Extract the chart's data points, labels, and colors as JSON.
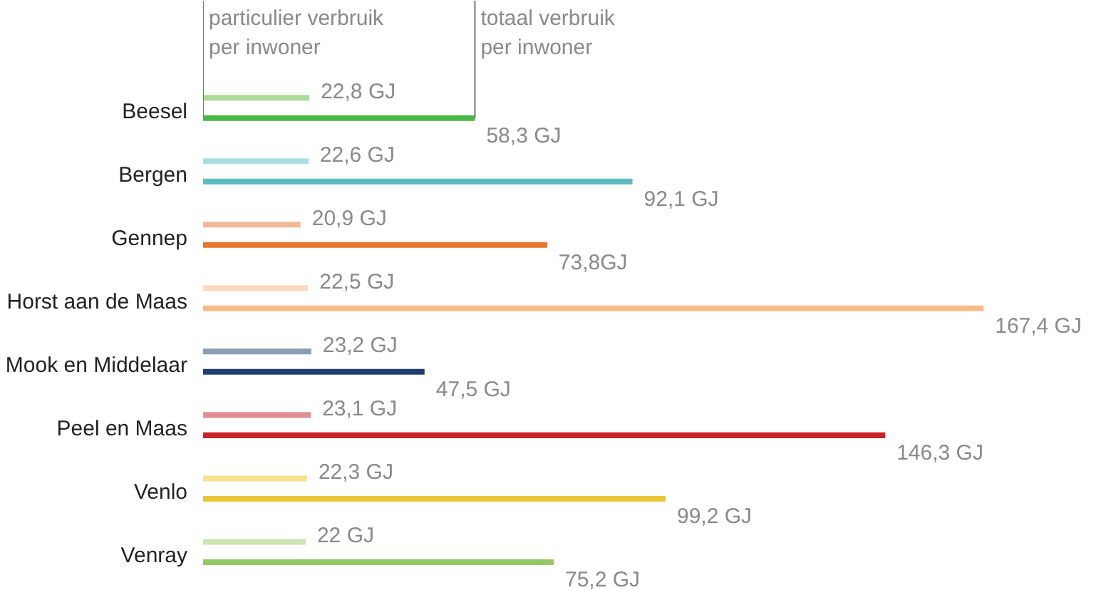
{
  "chart_data": {
    "type": "bar",
    "orientation": "horizontal",
    "categories": [
      "Beesel",
      "Bergen",
      "Gennep",
      "Horst aan de Maas",
      "Mook en Middelaar",
      "Peel en Maas",
      "Venlo",
      "Venray"
    ],
    "series": [
      {
        "colors": [
          "#a8dc98",
          "#a9dfe3",
          "#f2b896",
          "#fbd9bf",
          "#8a9db5",
          "#e09090",
          "#f7e28f",
          "#cde4b5"
        ],
        "values": [
          22.8,
          22.6,
          20.9,
          22.5,
          23.2,
          23.1,
          22.3,
          22
        ],
        "value_labels": [
          "22,8 GJ",
          "22,6 GJ",
          "20,9 GJ",
          "22,5 GJ",
          "23,2 GJ",
          "23,1 GJ",
          "22,3 GJ",
          "22 GJ"
        ]
      },
      {
        "colors": [
          "#4cb848",
          "#5bbcbf",
          "#e8762c",
          "#f8bb88",
          "#1e3f6e",
          "#cc2229",
          "#ecc536",
          "#94c863"
        ],
        "values": [
          58.3,
          92.1,
          73.8,
          167.4,
          47.5,
          146.3,
          99.2,
          75.2
        ],
        "value_labels": [
          "58,3 GJ",
          "92,1 GJ",
          "73,8GJ",
          "167,4 GJ",
          "47,5 GJ",
          "146,3 GJ",
          "99,2 GJ",
          "75,2 GJ"
        ]
      }
    ],
    "annotations": [
      {
        "text": "particulier verbruik\nper inwoner",
        "x": 0,
        "y": "Beesel"
      },
      {
        "text": "totaal verbruik\nper inwoner",
        "x": 58.3,
        "y": "Beesel"
      }
    ],
    "grid": false
  }
}
